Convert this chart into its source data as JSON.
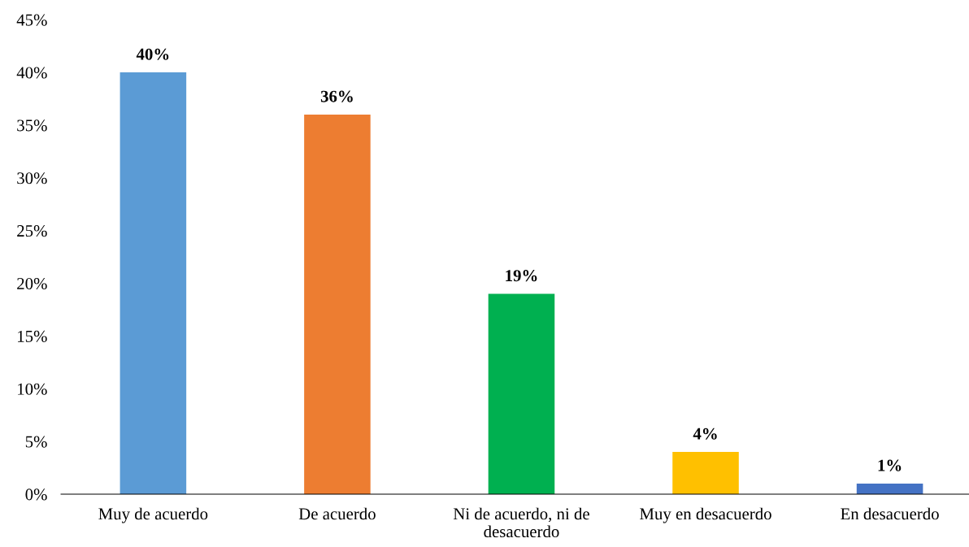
{
  "chart_data": {
    "type": "bar",
    "categories": [
      "Muy de acuerdo",
      "De acuerdo",
      "Ni de acuerdo, ni de\ndesacuerdo",
      "Muy en desacuerdo",
      "En desacuerdo"
    ],
    "values": [
      40,
      36,
      19,
      4,
      1
    ],
    "colors": [
      "#5b9bd5",
      "#ed7d31",
      "#00b050",
      "#ffc000",
      "#4472c4"
    ],
    "ylim": [
      0,
      45
    ],
    "yticks": [
      {
        "value": 0,
        "label": "0%"
      },
      {
        "value": 5,
        "label": "5%"
      },
      {
        "value": 10,
        "label": "10%"
      },
      {
        "value": 15,
        "label": "15%"
      },
      {
        "value": 20,
        "label": "20%"
      },
      {
        "value": 25,
        "label": "25%"
      },
      {
        "value": 30,
        "label": "30%"
      },
      {
        "value": 35,
        "label": "35%"
      },
      {
        "value": 40,
        "label": "40%"
      },
      {
        "value": 45,
        "label": "45%"
      }
    ],
    "value_labels": [
      "40%",
      "36%",
      "19%",
      "4%",
      "1%"
    ],
    "grid": false,
    "legend": false
  }
}
